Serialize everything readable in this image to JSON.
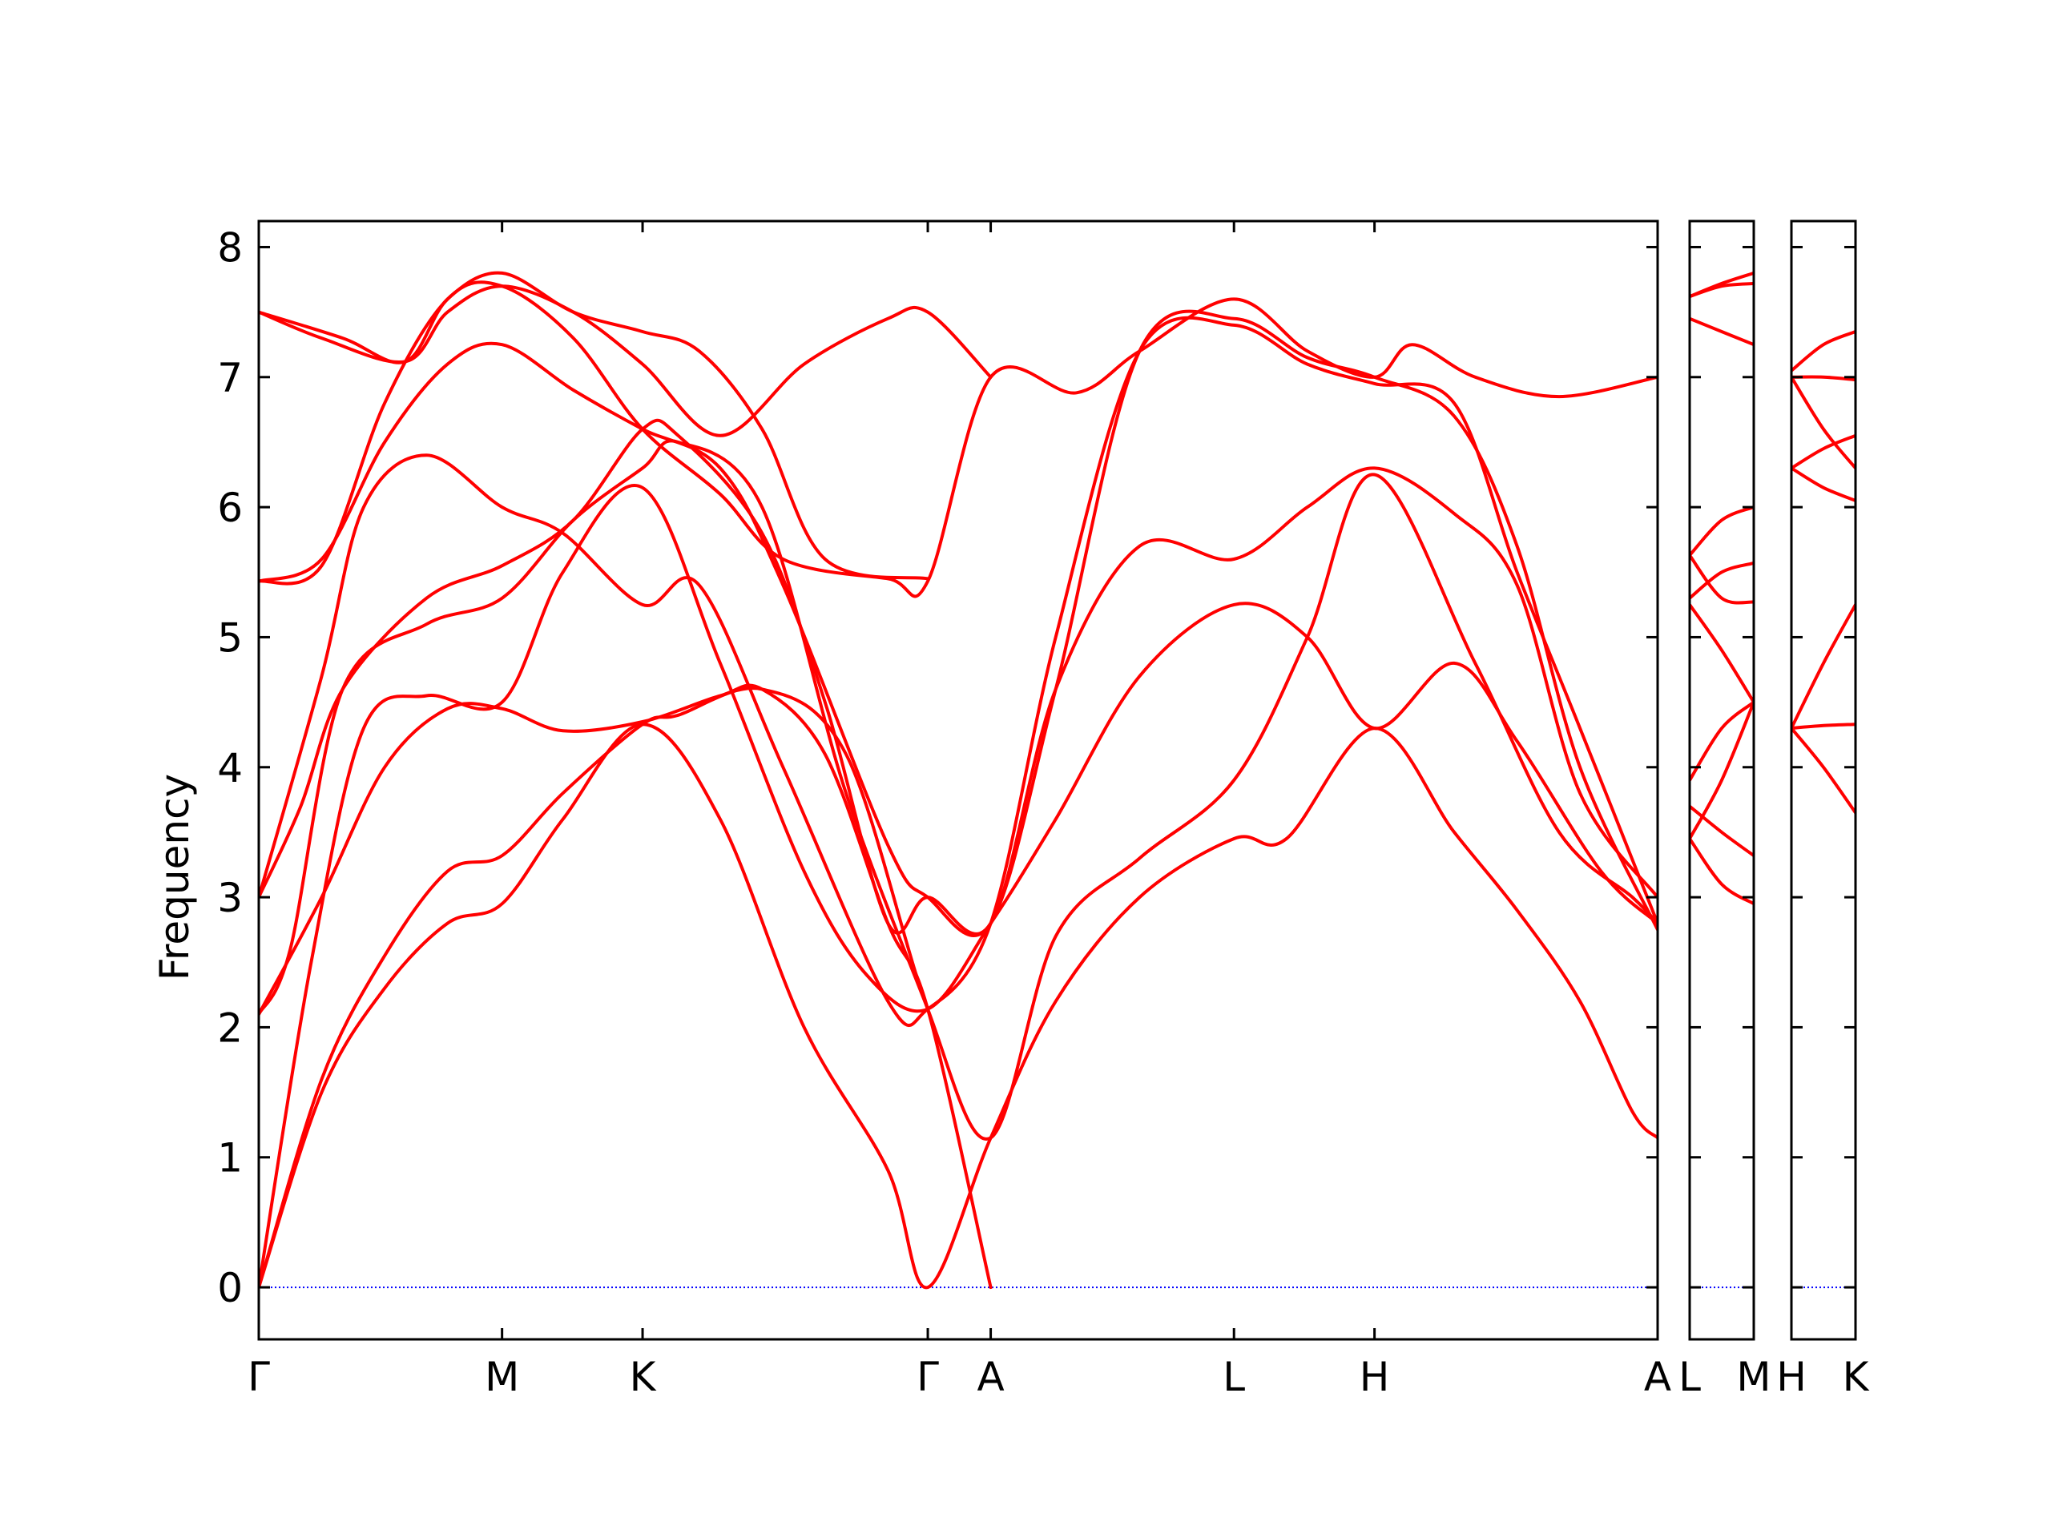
{
  "chart_data": {
    "type": "line",
    "title": "",
    "ylabel": "Frequency",
    "xlabel": "",
    "ylim": [
      -0.4,
      8.2
    ],
    "yticks": [
      0,
      1,
      2,
      3,
      4,
      5,
      6,
      7,
      8
    ],
    "grid": false,
    "legend": "none",
    "colors": {
      "bands": "#ff0000",
      "zero_line": "#0000ff",
      "axes": "#000000"
    },
    "panels": [
      {
        "name": "panel-main",
        "x_range": [
          0,
          6.67
        ],
        "ticks": [
          {
            "x": 0,
            "label": "Γ"
          },
          {
            "x": 1.16,
            "label": "M"
          },
          {
            "x": 1.83,
            "label": "K"
          },
          {
            "x": 3.19,
            "label": "Γ"
          },
          {
            "x": 3.49,
            "label": "A"
          },
          {
            "x": 4.65,
            "label": "L"
          },
          {
            "x": 5.32,
            "label": "H"
          },
          {
            "x": 6.67,
            "label": "A"
          }
        ],
        "bands": [
          [
            [
              0,
              0
            ],
            [
              0.3,
              1.5
            ],
            [
              0.6,
              2.3
            ],
            [
              0.9,
              2.8
            ],
            [
              1.16,
              2.95
            ],
            [
              1.45,
              3.6
            ],
            [
              1.83,
              4.33
            ],
            [
              2.2,
              3.6
            ],
            [
              2.6,
              2.0
            ],
            [
              3.0,
              0.9
            ],
            [
              3.19,
              0
            ],
            [
              3.49,
              1.15
            ],
            [
              3.8,
              2.2
            ],
            [
              4.2,
              3.0
            ],
            [
              4.65,
              3.45
            ],
            [
              4.9,
              3.45
            ],
            [
              5.32,
              4.3
            ],
            [
              5.7,
              3.5
            ],
            [
              6.0,
              2.9
            ],
            [
              6.3,
              2.2
            ],
            [
              6.55,
              1.35
            ],
            [
              6.67,
              1.15
            ]
          ],
          [
            [
              0,
              0
            ],
            [
              0.3,
              1.6
            ],
            [
              0.6,
              2.55
            ],
            [
              0.9,
              3.2
            ],
            [
              1.16,
              3.32
            ],
            [
              1.45,
              3.8
            ],
            [
              1.83,
              4.33
            ],
            [
              2.0,
              4.4
            ],
            [
              2.4,
              4.6
            ],
            [
              2.8,
              4.1
            ],
            [
              3.19,
              2.14
            ],
            [
              3.49,
              1.15
            ],
            [
              3.8,
              2.7
            ],
            [
              4.2,
              3.3
            ],
            [
              4.65,
              3.9
            ],
            [
              5.0,
              5.0
            ],
            [
              5.32,
              6.25
            ],
            [
              5.8,
              4.8
            ],
            [
              6.2,
              3.5
            ],
            [
              6.55,
              3.0
            ],
            [
              6.67,
              2.8
            ]
          ],
          [
            [
              0,
              0
            ],
            [
              0.25,
              2.5
            ],
            [
              0.5,
              4.3
            ],
            [
              0.8,
              4.55
            ],
            [
              1.16,
              4.5
            ],
            [
              1.45,
              5.5
            ],
            [
              1.83,
              6.15
            ],
            [
              2.2,
              4.8
            ],
            [
              2.6,
              3.2
            ],
            [
              2.9,
              2.4
            ],
            [
              3.19,
              2.14
            ],
            [
              3.49,
              2.8
            ],
            [
              3.8,
              3.6
            ],
            [
              4.2,
              4.7
            ],
            [
              4.65,
              5.25
            ],
            [
              5.0,
              5.0
            ],
            [
              5.32,
              4.3
            ],
            [
              5.7,
              4.8
            ],
            [
              6.0,
              4.2
            ],
            [
              6.4,
              3.2
            ],
            [
              6.67,
              2.8
            ]
          ],
          [
            [
              0,
              2.1
            ],
            [
              0.3,
              3.0
            ],
            [
              0.6,
              4.0
            ],
            [
              0.9,
              4.45
            ],
            [
              1.16,
              4.45
            ],
            [
              1.45,
              4.28
            ],
            [
              1.83,
              4.35
            ],
            [
              2.2,
              4.55
            ],
            [
              2.4,
              4.6
            ],
            [
              2.7,
              4.1
            ],
            [
              3.0,
              2.8
            ],
            [
              3.19,
              2.14
            ],
            [
              3.49,
              0.0
            ]
          ],
          [
            [
              0,
              2.1
            ],
            [
              0.15,
              2.6
            ],
            [
              0.4,
              4.6
            ],
            [
              0.8,
              5.1
            ],
            [
              1.16,
              5.3
            ],
            [
              1.5,
              5.9
            ],
            [
              1.83,
              6.3
            ],
            [
              2.0,
              6.5
            ],
            [
              2.4,
              6.0
            ],
            [
              2.8,
              3.8
            ],
            [
              3.19,
              2.14
            ]
          ],
          [
            [
              0,
              3.0
            ],
            [
              0.2,
              3.7
            ],
            [
              0.4,
              4.6
            ],
            [
              0.8,
              5.3
            ],
            [
              1.16,
              5.55
            ],
            [
              1.5,
              5.9
            ],
            [
              1.83,
              6.6
            ],
            [
              2.0,
              6.55
            ],
            [
              2.4,
              5.8
            ],
            [
              2.7,
              4.5
            ],
            [
              3.0,
              2.8
            ],
            [
              3.19,
              3.0
            ],
            [
              3.49,
              2.8
            ],
            [
              3.8,
              4.6
            ],
            [
              4.2,
              5.7
            ],
            [
              4.65,
              5.6
            ],
            [
              5.0,
              6.0
            ],
            [
              5.32,
              6.3
            ],
            [
              5.7,
              5.95
            ],
            [
              6.0,
              5.4
            ],
            [
              6.3,
              3.8
            ],
            [
              6.67,
              3.0
            ]
          ],
          [
            [
              0,
              3.0
            ],
            [
              0.3,
              4.7
            ],
            [
              0.5,
              6.0
            ],
            [
              0.8,
              6.4
            ],
            [
              1.16,
              6.0
            ],
            [
              1.45,
              5.8
            ],
            [
              1.83,
              5.25
            ],
            [
              2.1,
              5.4
            ],
            [
              2.5,
              4.0
            ],
            [
              3.0,
              2.2
            ],
            [
              3.19,
              2.14
            ],
            [
              3.49,
              2.8
            ],
            [
              3.8,
              5.0
            ],
            [
              4.2,
              7.2
            ],
            [
              4.65,
              7.4
            ],
            [
              5.0,
              7.1
            ],
            [
              5.32,
              6.95
            ],
            [
              5.7,
              6.8
            ],
            [
              6.0,
              5.5
            ],
            [
              6.3,
              4.3
            ],
            [
              6.67,
              2.8
            ]
          ],
          [
            [
              0,
              5.43
            ],
            [
              0.3,
              5.6
            ],
            [
              0.6,
              6.5
            ],
            [
              0.9,
              7.1
            ],
            [
              1.16,
              7.25
            ],
            [
              1.5,
              6.9
            ],
            [
              1.83,
              6.6
            ],
            [
              2.2,
              6.3
            ],
            [
              2.5,
              5.4
            ],
            [
              3.0,
              3.4
            ],
            [
              3.19,
              3.0
            ],
            [
              3.49,
              2.8
            ],
            [
              3.8,
              4.6
            ],
            [
              4.2,
              7.2
            ],
            [
              4.65,
              7.45
            ],
            [
              5.0,
              7.15
            ],
            [
              5.32,
              7.0
            ],
            [
              5.7,
              6.7
            ],
            [
              6.0,
              5.7
            ],
            [
              6.3,
              4.0
            ],
            [
              6.67,
              2.75
            ]
          ],
          [
            [
              0,
              5.43
            ],
            [
              0.3,
              5.55
            ],
            [
              0.6,
              6.8
            ],
            [
              0.9,
              7.6
            ],
            [
              1.16,
              7.7
            ],
            [
              1.5,
              7.3
            ],
            [
              1.83,
              6.6
            ],
            [
              2.2,
              6.1
            ],
            [
              2.5,
              5.6
            ],
            [
              3.0,
              5.45
            ],
            [
              3.19,
              5.43
            ],
            [
              3.49,
              7.0
            ],
            [
              3.9,
              6.88
            ],
            [
              4.2,
              7.2
            ],
            [
              4.65,
              7.6
            ],
            [
              5.0,
              7.2
            ],
            [
              5.32,
              7.0
            ],
            [
              5.5,
              7.25
            ],
            [
              5.8,
              7.0
            ],
            [
              6.2,
              6.85
            ],
            [
              6.67,
              7.0
            ]
          ],
          [
            [
              0,
              7.5
            ],
            [
              0.4,
              7.3
            ],
            [
              0.7,
              7.12
            ],
            [
              0.9,
              7.6
            ],
            [
              1.16,
              7.8
            ],
            [
              1.5,
              7.5
            ],
            [
              1.83,
              7.35
            ],
            [
              2.1,
              7.2
            ],
            [
              2.4,
              6.6
            ],
            [
              2.7,
              5.6
            ],
            [
              3.19,
              5.45
            ]
          ],
          [
            [
              0,
              7.5
            ],
            [
              0.3,
              7.3
            ],
            [
              0.7,
              7.12
            ],
            [
              0.9,
              7.5
            ],
            [
              1.16,
              7.7
            ],
            [
              1.5,
              7.5
            ],
            [
              1.83,
              7.1
            ],
            [
              2.2,
              6.55
            ],
            [
              2.6,
              7.1
            ],
            [
              3.0,
              7.45
            ],
            [
              3.19,
              7.5
            ],
            [
              3.49,
              7.0
            ]
          ]
        ]
      },
      {
        "name": "panel-lm",
        "x_range": [
          0,
          1
        ],
        "ticks": [
          {
            "x": 0,
            "label": "L"
          },
          {
            "x": 1,
            "label": "M"
          }
        ],
        "bands": [
          [
            [
              0,
              3.45
            ],
            [
              0.5,
              3.1
            ],
            [
              1,
              2.95
            ]
          ],
          [
            [
              0,
              3.7
            ],
            [
              0.5,
              3.5
            ],
            [
              1,
              3.32
            ]
          ],
          [
            [
              0,
              3.45
            ],
            [
              0.5,
              3.9
            ],
            [
              1,
              4.5
            ]
          ],
          [
            [
              0,
              3.9
            ],
            [
              0.5,
              4.3
            ],
            [
              1,
              4.5
            ]
          ],
          [
            [
              0,
              5.25
            ],
            [
              0.5,
              4.9
            ],
            [
              1,
              4.5
            ]
          ],
          [
            [
              0,
              5.63
            ],
            [
              0.5,
              5.3
            ],
            [
              1,
              5.27
            ]
          ],
          [
            [
              0,
              5.3
            ],
            [
              0.5,
              5.5
            ],
            [
              1,
              5.57
            ]
          ],
          [
            [
              0,
              5.63
            ],
            [
              0.5,
              5.9
            ],
            [
              1,
              6.0
            ]
          ],
          [
            [
              0,
              7.45
            ],
            [
              0.5,
              7.35
            ],
            [
              1,
              7.25
            ]
          ],
          [
            [
              0,
              7.62
            ],
            [
              0.5,
              7.7
            ],
            [
              1,
              7.72
            ]
          ],
          [
            [
              0,
              7.62
            ],
            [
              0.5,
              7.72
            ],
            [
              1,
              7.8
            ]
          ]
        ]
      },
      {
        "name": "panel-hk",
        "x_range": [
          0,
          1
        ],
        "ticks": [
          {
            "x": 0,
            "label": "H"
          },
          {
            "x": 1,
            "label": "K"
          }
        ],
        "bands": [
          [
            [
              0,
              4.3
            ],
            [
              0.5,
              4.32
            ],
            [
              1,
              4.33
            ]
          ],
          [
            [
              0,
              4.3
            ],
            [
              0.5,
              4.0
            ],
            [
              1,
              3.65
            ]
          ],
          [
            [
              0,
              4.3
            ],
            [
              0.5,
              4.8
            ],
            [
              1,
              5.25
            ]
          ],
          [
            [
              0,
              6.3
            ],
            [
              0.5,
              6.15
            ],
            [
              1,
              6.05
            ]
          ],
          [
            [
              0,
              6.3
            ],
            [
              0.5,
              6.45
            ],
            [
              1,
              6.55
            ]
          ],
          [
            [
              0,
              7.0
            ],
            [
              0.5,
              6.6
            ],
            [
              1,
              6.3
            ]
          ],
          [
            [
              0,
              7.0
            ],
            [
              0.5,
              7.0
            ],
            [
              1,
              6.98
            ]
          ],
          [
            [
              0,
              7.05
            ],
            [
              0.5,
              7.25
            ],
            [
              1,
              7.35
            ]
          ]
        ]
      }
    ]
  }
}
